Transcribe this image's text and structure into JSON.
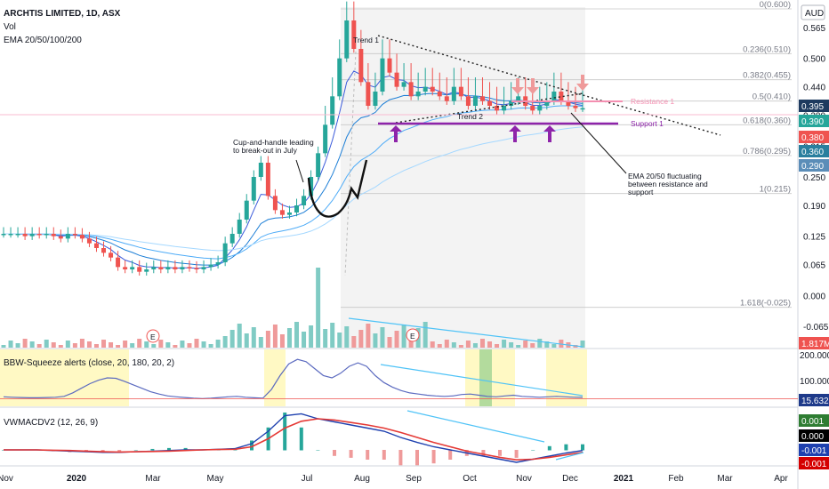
{
  "header": {
    "title": "ARCHTIS LIMITED, 1D, ASX",
    "vol_label": "Vol",
    "ema_label": "EMA 20/50/100/200",
    "currency": "AUD"
  },
  "chart_data": [
    {
      "type": "candlestick",
      "title": "ARCHTIS LIMITED, 1D, ASX",
      "x_ticks": [
        "Nov",
        "2020",
        "Mar",
        "May",
        "Jul",
        "Aug",
        "Sep",
        "Oct",
        "Nov",
        "Dec",
        "2021",
        "Feb",
        "Mar",
        "Apr"
      ],
      "y_ticks": [
        "0.565",
        "0.500",
        "0.440",
        "0.380",
        "0.315",
        "0.250",
        "0.190",
        "0.125",
        "0.065",
        "0.000",
        "-0.065"
      ],
      "price_badges": [
        {
          "value": "0.395",
          "color": "#1e3a5f"
        },
        {
          "value": "0.390",
          "color": "#26a69a"
        },
        {
          "value": "0.380",
          "color": "#ef5350"
        },
        {
          "value": "0.360",
          "color": "#2a7f9e"
        },
        {
          "value": "0.290",
          "color": "#5b8db8"
        }
      ],
      "volume_badge": {
        "value": "1.817M",
        "color": "#ef5350"
      },
      "fib_levels": [
        {
          "label": "0(0.600)",
          "value": 0.6
        },
        {
          "label": "0.236(0.510)",
          "value": 0.51
        },
        {
          "label": "0.382(0.455)",
          "value": 0.455
        },
        {
          "label": "0.5(0.410)",
          "value": 0.41
        },
        {
          "label": "0.618(0.360)",
          "value": 0.36
        },
        {
          "label": "0.786(0.295)",
          "value": 0.295
        },
        {
          "label": "1(0.215)",
          "value": 0.215
        },
        {
          "label": "1.618(-0.025)",
          "value": -0.025
        }
      ],
      "annotations": {
        "trend1": "Trend 1",
        "trend2": "Trend 2",
        "resistance": "Resistance 1",
        "support": "Support 1",
        "cup_line1": "Cup-and-handle leading",
        "cup_line2": "to break-out in July",
        "ema_line1": "EMA 20/50 fluctuating",
        "ema_line2": "between resistance and",
        "ema_line3": "support",
        "earnings": "E"
      },
      "closes": [
        0.13,
        0.13,
        0.13,
        0.125,
        0.13,
        0.128,
        0.13,
        0.125,
        0.12,
        0.13,
        0.128,
        0.12,
        0.11,
        0.1,
        0.09,
        0.08,
        0.06,
        0.055,
        0.06,
        0.05,
        0.055,
        0.06,
        0.055,
        0.06,
        0.055,
        0.06,
        0.058,
        0.055,
        0.06,
        0.065,
        0.07,
        0.11,
        0.13,
        0.16,
        0.2,
        0.25,
        0.28,
        0.21,
        0.18,
        0.17,
        0.175,
        0.19,
        0.21,
        0.25,
        0.3,
        0.36,
        0.42,
        0.5,
        0.58,
        0.52,
        0.45,
        0.4,
        0.43,
        0.5,
        0.47,
        0.44,
        0.45,
        0.42,
        0.43,
        0.44,
        0.43,
        0.42,
        0.41,
        0.44,
        0.42,
        0.4,
        0.42,
        0.41,
        0.4,
        0.39,
        0.4,
        0.41,
        0.42,
        0.4,
        0.39,
        0.4,
        0.41,
        0.43,
        0.41,
        0.4,
        0.395,
        0.395
      ]
    },
    {
      "type": "line",
      "title": "BBW-Squeeze alerts (close, 20, 180, 20, 2)",
      "y_ticks": [
        "200.000",
        "100.000"
      ],
      "last_value": {
        "value": "15.632",
        "color": "#1e3a8a"
      },
      "values": [
        18,
        16,
        15,
        14,
        14,
        15,
        16,
        20,
        35,
        55,
        75,
        90,
        100,
        98,
        85,
        70,
        55,
        40,
        30,
        22,
        18,
        15,
        12,
        10,
        12,
        15,
        18,
        20,
        16,
        14,
        12,
        50,
        110,
        160,
        180,
        170,
        140,
        110,
        100,
        120,
        150,
        165,
        150,
        110,
        80,
        60,
        45,
        35,
        30,
        25,
        22,
        20,
        22,
        28,
        30,
        25,
        20,
        18,
        22,
        25,
        20,
        18,
        16,
        18,
        20,
        18,
        16,
        15.6
      ]
    },
    {
      "type": "line",
      "title": "VWMACDV2 (12, 26, 9)",
      "badges": [
        {
          "value": "0.001",
          "color": "#2e7d32"
        },
        {
          "value": "0.000",
          "color": "#000000"
        },
        {
          "value": "-0.001",
          "color": "#1e40af"
        },
        {
          "value": "-0.001",
          "color": "#d50000"
        }
      ],
      "macd": [
        0,
        0,
        0,
        -0.001,
        -0.002,
        -0.003,
        -0.004,
        -0.004,
        -0.003,
        -0.002,
        -0.001,
        0,
        0,
        0.001,
        0.002,
        0.01,
        0.03,
        0.055,
        0.058,
        0.05,
        0.045,
        0.04,
        0.035,
        0.03,
        0.02,
        0.012,
        0.005,
        0,
        -0.005,
        -0.01,
        -0.015,
        -0.02,
        -0.015,
        -0.01,
        -0.005,
        -0.001
      ],
      "signal": [
        0,
        0,
        0,
        -0.0005,
        -0.001,
        -0.002,
        -0.003,
        -0.0035,
        -0.003,
        -0.0025,
        -0.002,
        -0.001,
        0,
        0.0005,
        0.001,
        0.005,
        0.018,
        0.035,
        0.046,
        0.05,
        0.048,
        0.044,
        0.04,
        0.035,
        0.028,
        0.02,
        0.012,
        0.005,
        -0.002,
        -0.007,
        -0.012,
        -0.016,
        -0.015,
        -0.012,
        -0.008,
        -0.004
      ]
    }
  ]
}
